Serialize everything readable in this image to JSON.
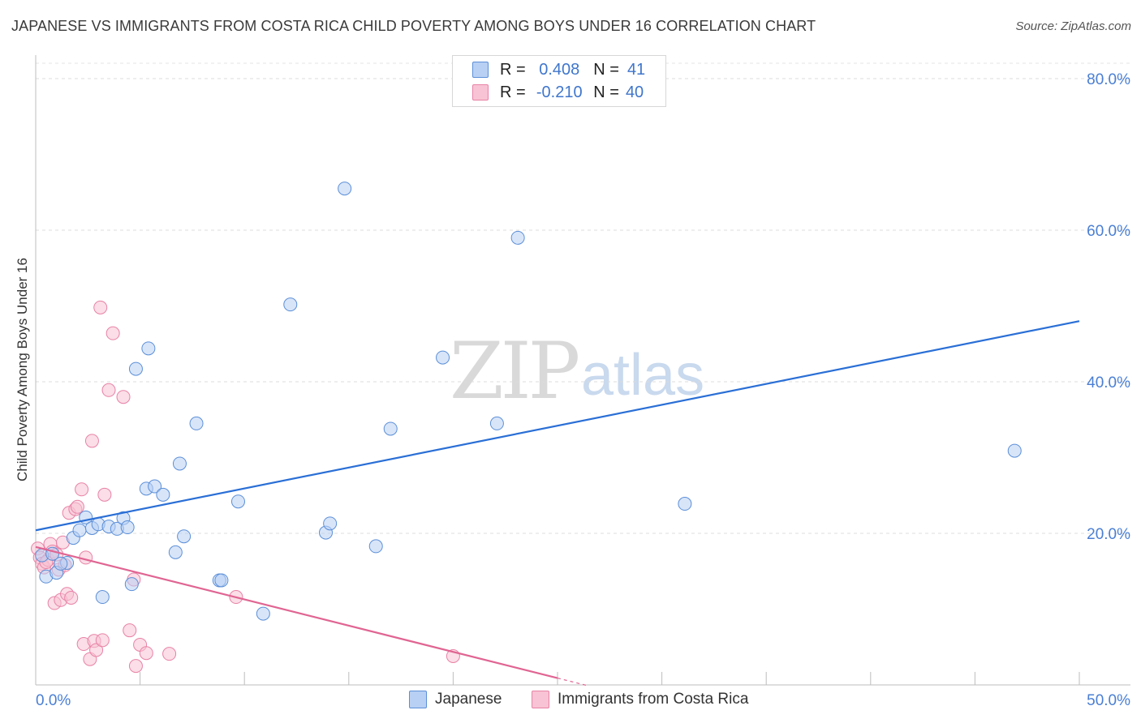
{
  "title": "JAPANESE VS IMMIGRANTS FROM COSTA RICA CHILD POVERTY AMONG BOYS UNDER 16 CORRELATION CHART",
  "source": "Source: ZipAtlas.com",
  "watermark": {
    "zip": "ZIP",
    "atlas": "atlas"
  },
  "colors": {
    "series1_fill": "#b8d0f4",
    "series1_stroke": "#5b8fd8",
    "series1_line": "#2a6fd6",
    "series2_fill": "#f8c3d4",
    "series2_stroke": "#e882a6",
    "series2_line": "#e06592",
    "tick_text": "#4a7fd4"
  },
  "correlation_box": {
    "rows": [
      {
        "r_label": "R =",
        "r_value": "0.408",
        "n_label": "N =",
        "n_value": "41"
      },
      {
        "r_label": "R =",
        "r_value": "-0.210",
        "n_label": "N =",
        "n_value": "40"
      }
    ]
  },
  "legend": {
    "items": [
      "Japanese",
      "Immigrants from Costa Rica"
    ]
  },
  "chart_data": {
    "type": "scatter",
    "title": "JAPANESE VS IMMIGRANTS FROM COSTA RICA CHILD POVERTY AMONG BOYS UNDER 16 CORRELATION CHART",
    "xlabel": "",
    "ylabel": "Child Poverty Among Boys Under 16",
    "xlim": [
      0,
      50
    ],
    "ylim": [
      0,
      80
    ],
    "x_tick_labels": [
      "0.0%",
      "50.0%"
    ],
    "y_ticks": [
      20,
      40,
      60,
      80
    ],
    "y_tick_labels": [
      "20.0%",
      "40.0%",
      "60.0%",
      "80.0%"
    ],
    "series": [
      {
        "name": "Japanese",
        "points": [
          [
            0.3,
            17.1
          ],
          [
            0.5,
            14.3
          ],
          [
            0.8,
            17.3
          ],
          [
            1.0,
            14.8
          ],
          [
            1.5,
            16.1
          ],
          [
            1.8,
            19.4
          ],
          [
            2.1,
            20.4
          ],
          [
            2.4,
            22.1
          ],
          [
            2.7,
            20.7
          ],
          [
            3.0,
            21.2
          ],
          [
            3.2,
            11.6
          ],
          [
            3.5,
            20.9
          ],
          [
            3.9,
            20.6
          ],
          [
            4.2,
            22.0
          ],
          [
            4.4,
            20.8
          ],
          [
            4.6,
            13.3
          ],
          [
            4.8,
            41.7
          ],
          [
            5.3,
            25.9
          ],
          [
            5.4,
            44.4
          ],
          [
            5.7,
            26.2
          ],
          [
            6.1,
            25.1
          ],
          [
            6.7,
            17.5
          ],
          [
            6.9,
            29.2
          ],
          [
            7.1,
            19.6
          ],
          [
            7.7,
            34.5
          ],
          [
            8.8,
            13.8
          ],
          [
            8.9,
            13.8
          ],
          [
            9.7,
            24.2
          ],
          [
            10.9,
            9.4
          ],
          [
            12.2,
            50.2
          ],
          [
            13.9,
            20.1
          ],
          [
            14.1,
            21.3
          ],
          [
            14.8,
            65.5
          ],
          [
            16.3,
            18.3
          ],
          [
            17.0,
            33.8
          ],
          [
            19.5,
            43.2
          ],
          [
            22.1,
            34.5
          ],
          [
            23.1,
            59.0
          ],
          [
            31.1,
            23.9
          ],
          [
            46.9,
            30.9
          ],
          [
            1.2,
            16.0
          ]
        ]
      },
      {
        "name": "Immigrants from Costa Rica",
        "points": [
          [
            0.1,
            18.0
          ],
          [
            0.2,
            16.8
          ],
          [
            0.3,
            16.0
          ],
          [
            0.4,
            15.5
          ],
          [
            0.6,
            16.5
          ],
          [
            0.7,
            18.6
          ],
          [
            0.8,
            17.6
          ],
          [
            0.9,
            10.8
          ],
          [
            1.1,
            15.2
          ],
          [
            1.2,
            11.2
          ],
          [
            1.3,
            18.8
          ],
          [
            1.4,
            15.8
          ],
          [
            1.5,
            12.0
          ],
          [
            1.6,
            22.7
          ],
          [
            1.7,
            11.5
          ],
          [
            1.9,
            23.2
          ],
          [
            2.0,
            23.5
          ],
          [
            2.2,
            25.8
          ],
          [
            2.3,
            5.4
          ],
          [
            2.4,
            16.8
          ],
          [
            2.6,
            3.4
          ],
          [
            2.7,
            32.2
          ],
          [
            2.8,
            5.8
          ],
          [
            2.9,
            4.6
          ],
          [
            3.1,
            49.8
          ],
          [
            3.2,
            5.9
          ],
          [
            3.3,
            25.1
          ],
          [
            3.5,
            38.9
          ],
          [
            3.7,
            46.4
          ],
          [
            4.2,
            38.0
          ],
          [
            4.5,
            7.2
          ],
          [
            4.7,
            13.9
          ],
          [
            4.8,
            2.5
          ],
          [
            5.0,
            5.3
          ],
          [
            5.3,
            4.2
          ],
          [
            6.4,
            4.1
          ],
          [
            9.6,
            11.6
          ],
          [
            20.0,
            3.8
          ],
          [
            0.5,
            16.2
          ],
          [
            1.0,
            17.2
          ]
        ]
      }
    ],
    "trend_lines": [
      {
        "name": "Japanese",
        "x": [
          0,
          50
        ],
        "y": [
          20.4,
          48.0
        ]
      },
      {
        "name": "Immigrants from Costa Rica",
        "x": [
          0,
          25
        ],
        "y": [
          18.2,
          0.9
        ]
      }
    ],
    "legend_position": "bottom-center",
    "grid": true
  }
}
